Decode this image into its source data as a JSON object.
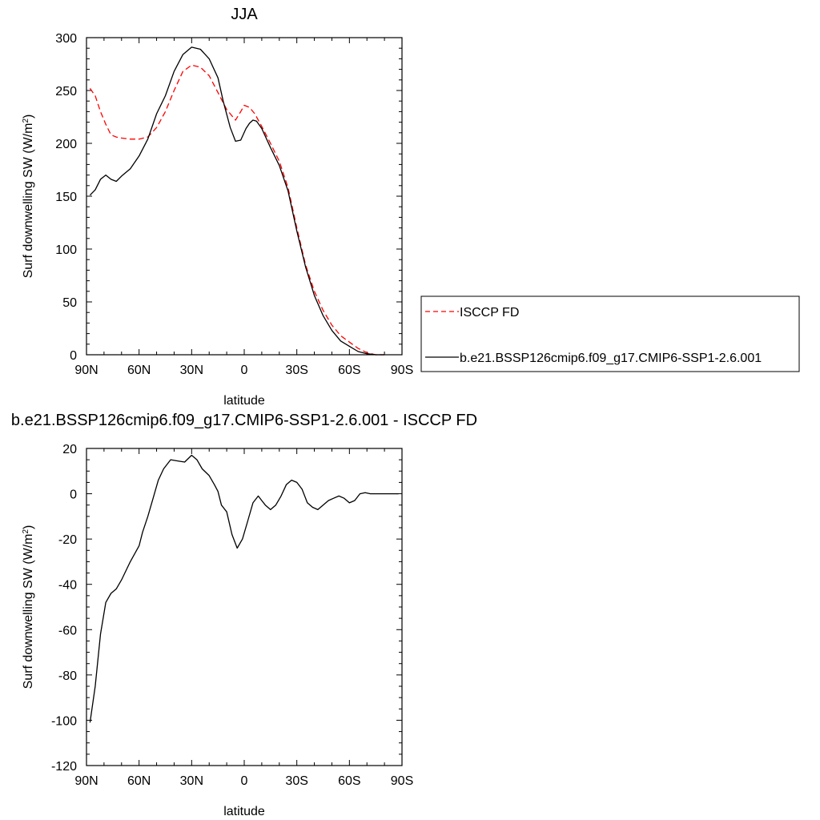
{
  "chart_data": [
    {
      "type": "line",
      "title": "JJA",
      "xlabel": "latitude",
      "ylabel": "Surf downwelling SW (W/m",
      "ylabel_sup": "2",
      "ylabel_tail": ")",
      "xlim": [
        90,
        -90
      ],
      "ylim": [
        0,
        300
      ],
      "x_ticks": [
        90,
        60,
        30,
        0,
        -30,
        -60,
        -90
      ],
      "x_tick_labels": [
        "90N",
        "60N",
        "30N",
        "0",
        "30S",
        "60S",
        "90S"
      ],
      "y_ticks": [
        0,
        50,
        100,
        150,
        200,
        250,
        300
      ],
      "y_tick_labels": [
        "0",
        "50",
        "100",
        "150",
        "200",
        "250",
        "300"
      ],
      "legend_position": "right",
      "series": [
        {
          "name": "ISCCP FD",
          "color": "#ff0000",
          "dashed": true,
          "x": [
            88,
            85,
            82,
            79,
            76,
            73,
            70,
            65,
            60,
            55,
            50,
            45,
            40,
            35,
            30,
            25,
            20,
            15,
            10,
            5,
            2,
            0,
            -3,
            -6,
            -10,
            -15,
            -20,
            -25,
            -30,
            -35,
            -40,
            -45,
            -50,
            -55,
            -60,
            -65,
            -70,
            -75,
            -80
          ],
          "y": [
            252,
            245,
            230,
            218,
            208,
            206,
            205,
            204,
            204,
            206,
            215,
            230,
            250,
            268,
            274,
            272,
            264,
            248,
            232,
            222,
            230,
            236,
            234,
            228,
            216,
            200,
            183,
            158,
            120,
            85,
            60,
            42,
            28,
            18,
            12,
            6,
            2,
            0,
            0
          ]
        },
        {
          "name": "b.e21.BSSP126cmip6.f09_g17.CMIP6-SSP1-2.6.001",
          "color": "#000000",
          "dashed": false,
          "x": [
            88,
            85,
            82,
            79,
            76,
            73,
            70,
            65,
            60,
            55,
            50,
            45,
            40,
            35,
            30,
            25,
            20,
            15,
            12,
            8,
            5,
            2,
            -1,
            -3,
            -5,
            -7,
            -10,
            -15,
            -20,
            -25,
            -30,
            -35,
            -40,
            -45,
            -50,
            -55,
            -60,
            -65,
            -70,
            -75,
            -80
          ],
          "y": [
            151,
            156,
            166,
            170,
            166,
            164,
            169,
            176,
            188,
            204,
            228,
            245,
            268,
            284,
            291,
            289,
            280,
            262,
            240,
            215,
            202,
            203,
            214,
            219,
            222,
            221,
            214,
            196,
            179,
            155,
            117,
            83,
            56,
            37,
            23,
            13,
            8,
            3,
            1,
            0,
            0
          ]
        }
      ]
    },
    {
      "type": "line",
      "title": "b.e21.BSSP126cmip6.f09_g17.CMIP6-SSP1-2.6.001 - ISCCP FD",
      "xlabel": "latitude",
      "ylabel": "Surf downwelling SW (W/m",
      "ylabel_sup": "2",
      "ylabel_tail": ")",
      "xlim": [
        90,
        -90
      ],
      "ylim": [
        -120,
        20
      ],
      "x_ticks": [
        90,
        60,
        30,
        0,
        -30,
        -60,
        -90
      ],
      "x_tick_labels": [
        "90N",
        "60N",
        "30N",
        "0",
        "30S",
        "60S",
        "90S"
      ],
      "y_ticks": [
        -120,
        -100,
        -80,
        -60,
        -40,
        -20,
        0,
        20
      ],
      "y_tick_labels": [
        "-120",
        "-100",
        "-80",
        "-60",
        "-40",
        "-20",
        "0",
        "20"
      ],
      "series": [
        {
          "color": "#000000",
          "dashed": false,
          "x": [
            88,
            85,
            82,
            79,
            76,
            73,
            70,
            65,
            60,
            58,
            55,
            52,
            49,
            46,
            42,
            38,
            34,
            30,
            27,
            24,
            20,
            17,
            15,
            13,
            10,
            7,
            4,
            1,
            -2,
            -5,
            -8,
            -10,
            -12,
            -15,
            -18,
            -21,
            -24,
            -27,
            -30,
            -33,
            -36,
            -39,
            -42,
            -45,
            -48,
            -51,
            -54,
            -57,
            -60,
            -63,
            -66,
            -69,
            -72,
            -75,
            -80,
            -85,
            -88
          ],
          "y": [
            -101,
            -85,
            -62,
            -48,
            -44,
            -42,
            -38,
            -30,
            -23,
            -17,
            -10,
            -2,
            6,
            11,
            15,
            14.5,
            14,
            17,
            15,
            11,
            8,
            4,
            1,
            -5,
            -8,
            -18,
            -24,
            -20,
            -12,
            -4,
            -1,
            -3,
            -5,
            -7,
            -5,
            -1,
            4,
            6,
            5,
            2,
            -4,
            -6,
            -7,
            -5,
            -3,
            -2,
            -1,
            -2,
            -4,
            -3,
            0,
            0.5,
            0,
            0,
            0,
            0,
            0
          ]
        }
      ]
    }
  ]
}
